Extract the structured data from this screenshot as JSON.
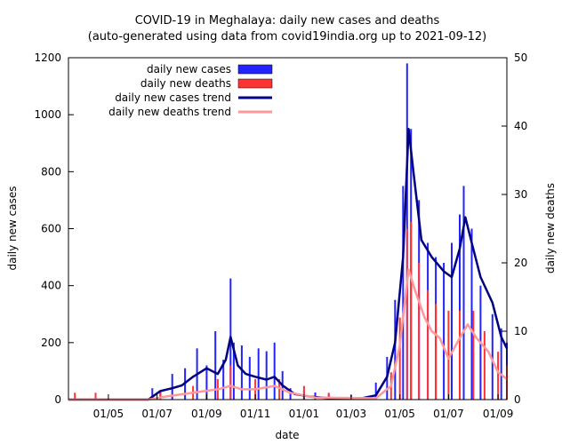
{
  "chart_data": {
    "type": "bar",
    "title": "COVID-19 in Meghalaya: daily new cases and deaths",
    "subtitle": "(auto-generated using data from covid19india.org up to 2021-09-12)",
    "xlabel": "date",
    "ylabel_left": "daily new cases",
    "ylabel_right": "daily new deaths",
    "ylim_left": [
      0,
      1200
    ],
    "ylim_right": [
      0,
      50
    ],
    "yticks_left": [
      0,
      200,
      400,
      600,
      800,
      1000,
      1200
    ],
    "yticks_right": [
      0,
      10,
      20,
      30,
      40,
      50
    ],
    "xlim": [
      "2020-03-12",
      "2021-09-12"
    ],
    "xticks": [
      {
        "date": "2020-05-01",
        "label": "01/05"
      },
      {
        "date": "2020-07-01",
        "label": "01/07"
      },
      {
        "date": "2020-09-01",
        "label": "01/09"
      },
      {
        "date": "2020-11-01",
        "label": "01/11"
      },
      {
        "date": "2021-01-01",
        "label": "01/01"
      },
      {
        "date": "2021-03-01",
        "label": "01/03"
      },
      {
        "date": "2021-05-01",
        "label": "01/05"
      },
      {
        "date": "2021-07-01",
        "label": "01/07"
      },
      {
        "date": "2021-09-01",
        "label": "01/09"
      }
    ],
    "legend_position": "top-left",
    "series": [
      {
        "name": "daily new cases",
        "kind": "bars",
        "axis": "left",
        "color": "#2323ff",
        "points": [
          [
            "2020-06-25",
            40
          ],
          [
            "2020-07-05",
            30
          ],
          [
            "2020-07-20",
            90
          ],
          [
            "2020-08-05",
            110
          ],
          [
            "2020-08-20",
            180
          ],
          [
            "2020-09-01",
            120
          ],
          [
            "2020-09-12",
            240
          ],
          [
            "2020-09-22",
            140
          ],
          [
            "2020-10-01",
            425
          ],
          [
            "2020-10-05",
            200
          ],
          [
            "2020-10-15",
            190
          ],
          [
            "2020-10-25",
            150
          ],
          [
            "2020-11-05",
            180
          ],
          [
            "2020-11-15",
            170
          ],
          [
            "2020-11-25",
            200
          ],
          [
            "2020-12-05",
            100
          ],
          [
            "2020-12-15",
            40
          ],
          [
            "2021-01-01",
            30
          ],
          [
            "2021-01-15",
            25
          ],
          [
            "2021-02-01",
            20
          ],
          [
            "2021-03-01",
            15
          ],
          [
            "2021-04-01",
            60
          ],
          [
            "2021-04-15",
            150
          ],
          [
            "2021-04-25",
            350
          ],
          [
            "2021-05-05",
            750
          ],
          [
            "2021-05-10",
            1180
          ],
          [
            "2021-05-15",
            950
          ],
          [
            "2021-05-25",
            700
          ],
          [
            "2021-06-05",
            550
          ],
          [
            "2021-06-15",
            500
          ],
          [
            "2021-06-25",
            480
          ],
          [
            "2021-07-05",
            550
          ],
          [
            "2021-07-15",
            650
          ],
          [
            "2021-07-20",
            750
          ],
          [
            "2021-07-30",
            600
          ],
          [
            "2021-08-10",
            400
          ],
          [
            "2021-08-25",
            300
          ],
          [
            "2021-09-05",
            250
          ],
          [
            "2021-09-12",
            200
          ]
        ]
      },
      {
        "name": "daily new deaths",
        "kind": "bars",
        "axis": "right",
        "color": "#ff3333",
        "points": [
          [
            "2020-03-20",
            1
          ],
          [
            "2020-04-15",
            1
          ],
          [
            "2020-07-05",
            1
          ],
          [
            "2020-08-15",
            2
          ],
          [
            "2020-09-15",
            3
          ],
          [
            "2020-10-01",
            5
          ],
          [
            "2020-11-01",
            3
          ],
          [
            "2020-12-01",
            3
          ],
          [
            "2021-01-01",
            2
          ],
          [
            "2021-02-01",
            1
          ],
          [
            "2021-04-20",
            4
          ],
          [
            "2021-05-01",
            12
          ],
          [
            "2021-05-10",
            25
          ],
          [
            "2021-05-15",
            26
          ],
          [
            "2021-05-25",
            20
          ],
          [
            "2021-06-05",
            16
          ],
          [
            "2021-06-15",
            14
          ],
          [
            "2021-07-01",
            13
          ],
          [
            "2021-07-15",
            13
          ],
          [
            "2021-08-01",
            13
          ],
          [
            "2021-08-15",
            10
          ],
          [
            "2021-09-01",
            7
          ],
          [
            "2021-09-12",
            5
          ]
        ]
      },
      {
        "name": "daily new cases trend",
        "kind": "line",
        "axis": "left",
        "color": "#000080",
        "points": [
          [
            "2020-03-12",
            0
          ],
          [
            "2020-06-20",
            0
          ],
          [
            "2020-07-05",
            30
          ],
          [
            "2020-07-20",
            40
          ],
          [
            "2020-08-01",
            50
          ],
          [
            "2020-08-15",
            80
          ],
          [
            "2020-09-01",
            110
          ],
          [
            "2020-09-15",
            90
          ],
          [
            "2020-09-25",
            140
          ],
          [
            "2020-10-01",
            220
          ],
          [
            "2020-10-10",
            120
          ],
          [
            "2020-10-20",
            90
          ],
          [
            "2020-11-01",
            80
          ],
          [
            "2020-11-15",
            70
          ],
          [
            "2020-11-25",
            80
          ],
          [
            "2020-12-05",
            50
          ],
          [
            "2020-12-20",
            20
          ],
          [
            "2021-01-10",
            10
          ],
          [
            "2021-02-01",
            5
          ],
          [
            "2021-03-15",
            5
          ],
          [
            "2021-04-01",
            15
          ],
          [
            "2021-04-15",
            80
          ],
          [
            "2021-04-25",
            200
          ],
          [
            "2021-05-05",
            500
          ],
          [
            "2021-05-12",
            950
          ],
          [
            "2021-05-18",
            800
          ],
          [
            "2021-05-28",
            560
          ],
          [
            "2021-06-10",
            500
          ],
          [
            "2021-06-25",
            450
          ],
          [
            "2021-07-05",
            430
          ],
          [
            "2021-07-15",
            530
          ],
          [
            "2021-07-22",
            640
          ],
          [
            "2021-07-30",
            550
          ],
          [
            "2021-08-10",
            430
          ],
          [
            "2021-08-25",
            340
          ],
          [
            "2021-09-05",
            220
          ],
          [
            "2021-09-12",
            180
          ]
        ]
      },
      {
        "name": "daily new deaths trend",
        "kind": "line",
        "axis": "right",
        "color": "#ff9999",
        "points": [
          [
            "2020-03-12",
            0
          ],
          [
            "2020-06-20",
            0
          ],
          [
            "2020-07-15",
            0.5
          ],
          [
            "2020-08-15",
            1
          ],
          [
            "2020-09-15",
            1.5
          ],
          [
            "2020-10-01",
            2
          ],
          [
            "2020-10-15",
            1.5
          ],
          [
            "2020-11-01",
            1.5
          ],
          [
            "2020-11-25",
            2
          ],
          [
            "2020-12-15",
            1
          ],
          [
            "2021-01-15",
            0.3
          ],
          [
            "2021-04-01",
            0.2
          ],
          [
            "2021-04-20",
            2
          ],
          [
            "2021-05-01",
            8
          ],
          [
            "2021-05-12",
            19
          ],
          [
            "2021-05-20",
            16
          ],
          [
            "2021-06-01",
            12
          ],
          [
            "2021-06-10",
            10
          ],
          [
            "2021-06-20",
            9
          ],
          [
            "2021-07-01",
            6
          ],
          [
            "2021-07-15",
            9
          ],
          [
            "2021-07-25",
            11
          ],
          [
            "2021-08-05",
            9
          ],
          [
            "2021-08-20",
            7
          ],
          [
            "2021-09-01",
            4
          ],
          [
            "2021-09-12",
            3
          ]
        ]
      }
    ]
  }
}
